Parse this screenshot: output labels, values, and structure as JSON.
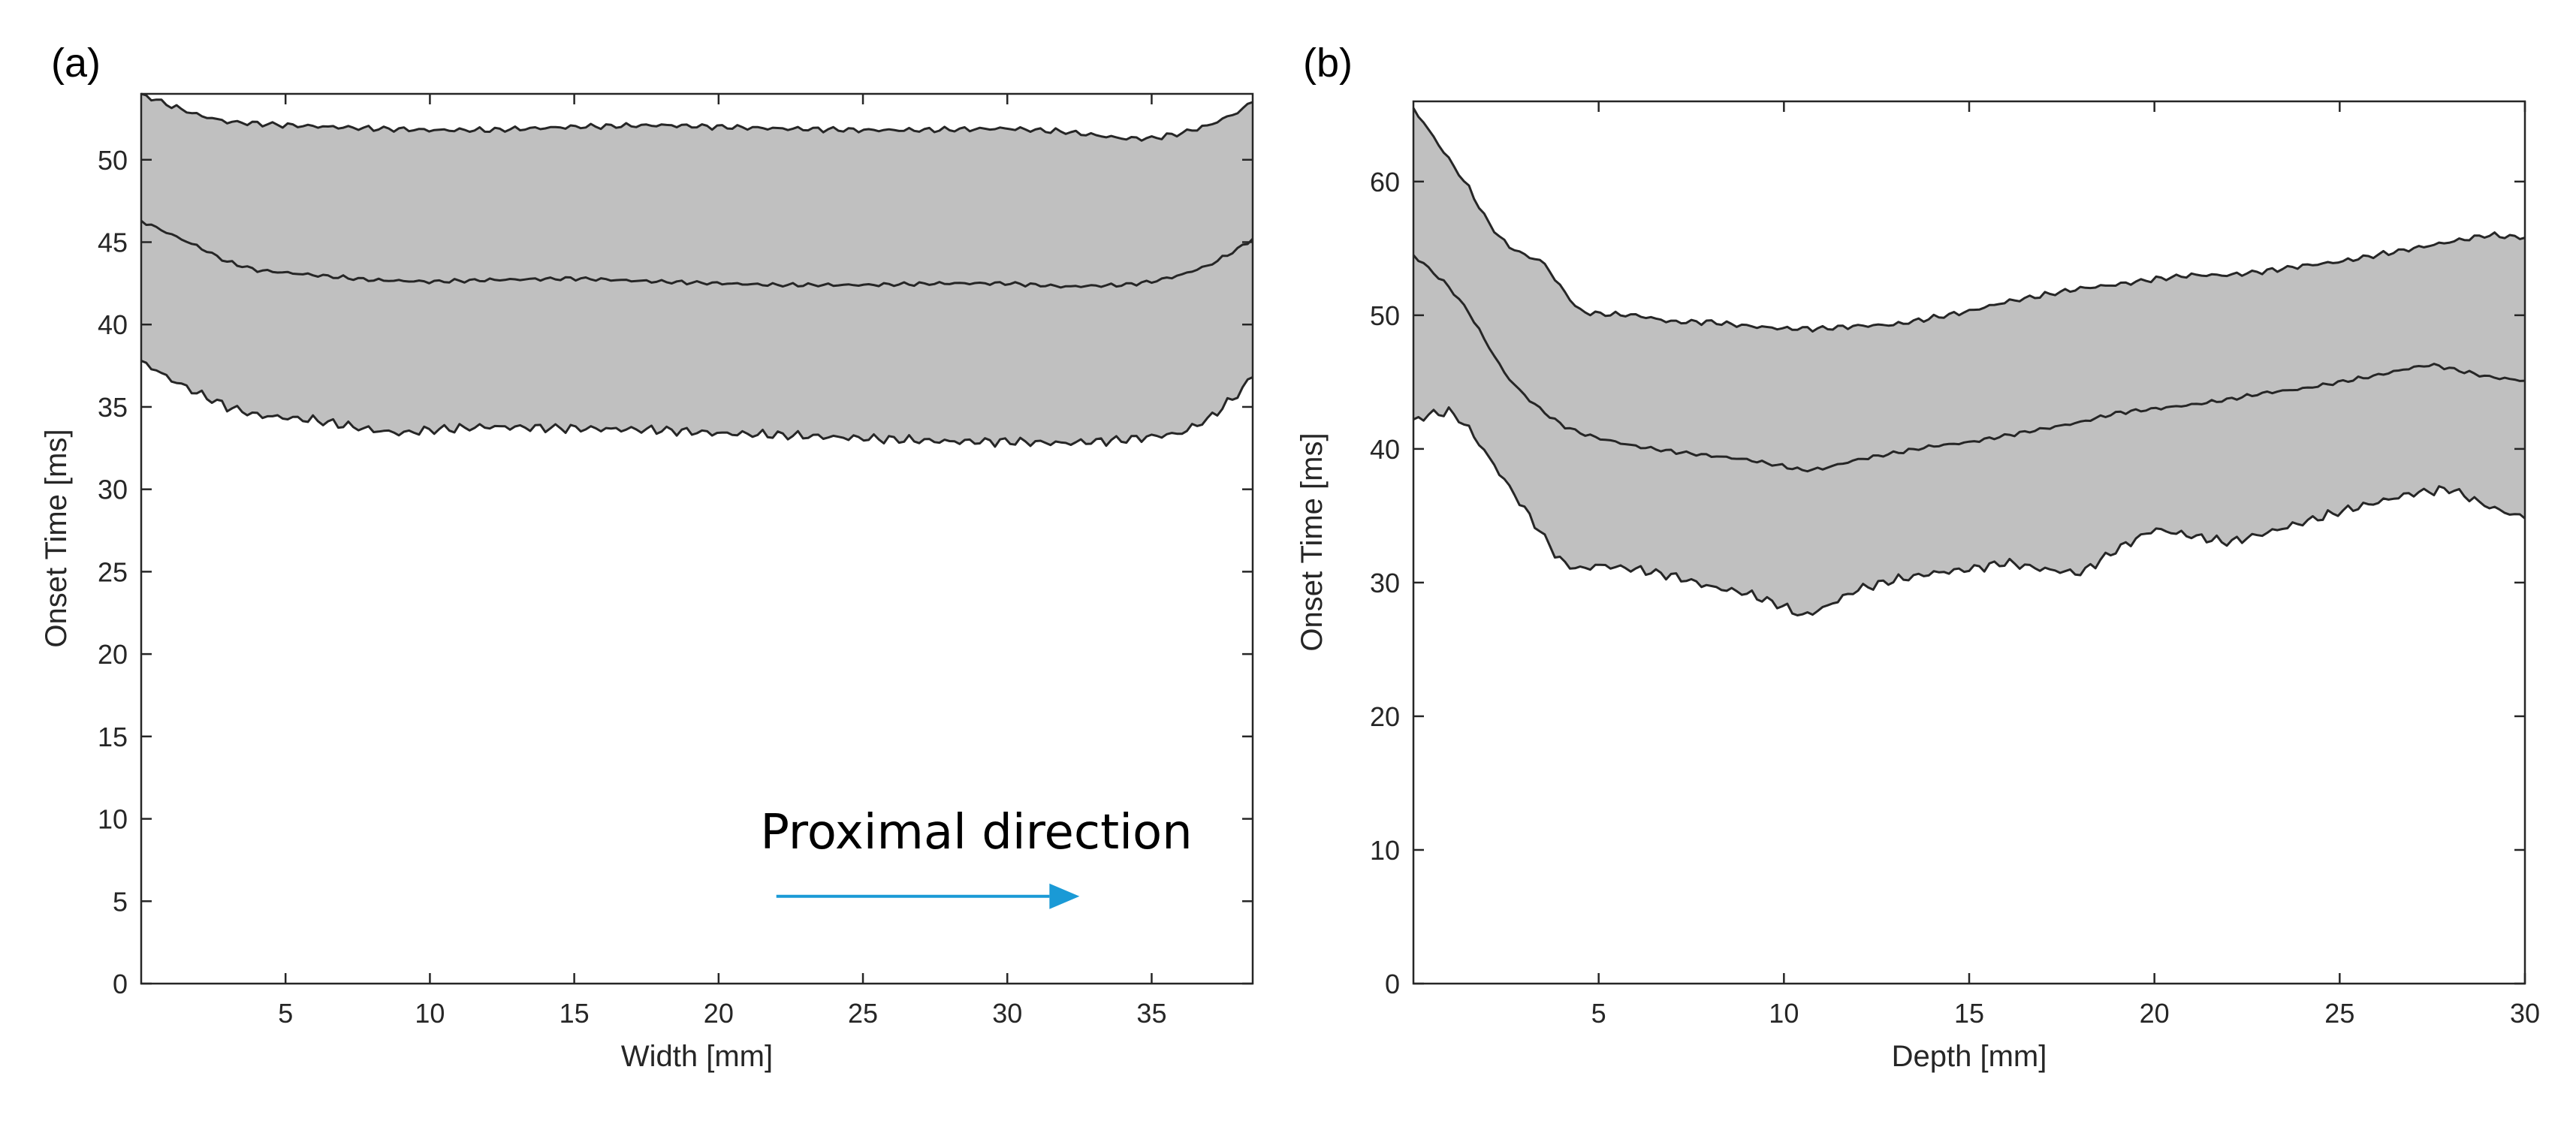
{
  "colors": {
    "band_fill": "#c0c0c0",
    "line": "#262626",
    "axis": "#262626",
    "arrow": "#1a9ad6"
  },
  "chart_data": [
    {
      "type": "area",
      "panel_label": "(a)",
      "title": "",
      "xlabel": "Width [mm]",
      "ylabel": "Onset Time [ms]",
      "xlim": [
        0,
        38.5
      ],
      "ylim": [
        0,
        54
      ],
      "xticks": [
        5,
        10,
        15,
        20,
        25,
        30,
        35
      ],
      "yticks": [
        0,
        5,
        10,
        15,
        20,
        25,
        30,
        35,
        40,
        45,
        50
      ],
      "grid": false,
      "annotation": {
        "text": "Proximal direction",
        "arrow_from_x": 22,
        "arrow_to_x": 32.5,
        "arrow_y": 5.3
      },
      "series": [
        {
          "name": "upper",
          "x": [
            0,
            1,
            2,
            3,
            5,
            8,
            10,
            12,
            15,
            18,
            20,
            22,
            25,
            27,
            30,
            32,
            34,
            35,
            36,
            37,
            38,
            38.5
          ],
          "values": [
            54,
            53.3,
            52.7,
            52.3,
            52.1,
            51.9,
            51.8,
            51.8,
            52,
            52.1,
            52,
            51.9,
            51.8,
            51.8,
            51.9,
            51.7,
            51.3,
            51.3,
            51.6,
            52.1,
            52.9,
            53.5
          ]
        },
        {
          "name": "median",
          "x": [
            0,
            1,
            2,
            3,
            4,
            6,
            8,
            10,
            12,
            15,
            18,
            20,
            22,
            25,
            28,
            30,
            32,
            34,
            35,
            36,
            37,
            38,
            38.5
          ],
          "values": [
            46.3,
            45.5,
            44.7,
            43.8,
            43.3,
            43,
            42.7,
            42.6,
            42.7,
            42.8,
            42.6,
            42.5,
            42.4,
            42.4,
            42.5,
            42.5,
            42.3,
            42.4,
            42.6,
            43,
            43.6,
            44.6,
            45.2
          ]
        },
        {
          "name": "lower",
          "x": [
            0,
            1,
            2,
            3,
            4,
            6,
            8,
            9,
            10,
            12,
            15,
            18,
            20,
            22,
            25,
            28,
            30,
            32,
            34,
            35,
            36,
            37,
            38,
            38.5
          ],
          "values": [
            37.8,
            36.7,
            35.8,
            35,
            34.5,
            34.2,
            33.6,
            33.4,
            33.6,
            33.8,
            33.7,
            33.6,
            33.4,
            33.3,
            33.1,
            32.9,
            32.9,
            32.8,
            33,
            33.2,
            33.4,
            34.3,
            35.8,
            36.8
          ]
        }
      ]
    },
    {
      "type": "area",
      "panel_label": "(b)",
      "title": "",
      "xlabel": "Depth [mm]",
      "ylabel": "Onset Time [ms]",
      "xlim": [
        0,
        30
      ],
      "ylim": [
        0,
        66
      ],
      "xticks": [
        5,
        10,
        15,
        20,
        25,
        30
      ],
      "yticks": [
        0,
        10,
        20,
        30,
        40,
        50,
        60
      ],
      "grid": false,
      "series": [
        {
          "name": "upper",
          "x": [
            0,
            0.5,
            1,
            1.5,
            2,
            2.5,
            3,
            3.5,
            4,
            4.5,
            5,
            6,
            7,
            8,
            9,
            10,
            11,
            12,
            13,
            14,
            15,
            16,
            17,
            18,
            19,
            20,
            21,
            22,
            23,
            24,
            25,
            26,
            27,
            28,
            29,
            30
          ],
          "values": [
            65.5,
            63.5,
            61.5,
            59.5,
            57,
            55.3,
            54.5,
            54,
            52,
            50.3,
            50.1,
            50,
            49.5,
            49.5,
            49.2,
            49,
            49,
            49.2,
            49.3,
            49.8,
            50.3,
            51,
            51.5,
            52,
            52.3,
            52.7,
            53,
            53,
            53.3,
            53.7,
            54,
            54.5,
            55,
            55.5,
            56,
            55.8
          ]
        },
        {
          "name": "median",
          "x": [
            0,
            0.5,
            1,
            1.5,
            2,
            2.5,
            3,
            3.5,
            4,
            4.5,
            5,
            6,
            7,
            8,
            9,
            10,
            10.5,
            11,
            12,
            13,
            14,
            15,
            16,
            17,
            18,
            19,
            20,
            21,
            22,
            23,
            24,
            25,
            26,
            27,
            27.5,
            28,
            29,
            30
          ],
          "values": [
            54.5,
            53.3,
            52,
            50.2,
            47.8,
            45.5,
            44,
            42.8,
            41.8,
            41.2,
            40.8,
            40.2,
            39.8,
            39.5,
            39.2,
            38.7,
            38.4,
            38.5,
            39.2,
            39.7,
            40.2,
            40.5,
            41,
            41.5,
            42,
            42.7,
            43,
            43.3,
            43.7,
            44.2,
            44.5,
            45,
            45.5,
            46.1,
            46.3,
            46,
            45.4,
            45.1
          ]
        },
        {
          "name": "lower",
          "x": [
            0,
            0.5,
            1,
            1.5,
            2,
            2.5,
            3,
            3.5,
            4,
            4.5,
            5,
            6,
            7,
            8,
            9,
            10,
            10.5,
            11,
            12,
            13,
            14,
            15,
            16,
            17,
            18,
            19,
            20,
            21,
            22,
            23,
            24,
            25,
            26,
            27,
            28,
            29,
            30
          ],
          "values": [
            42.2,
            42.6,
            42.8,
            41.5,
            39.5,
            37.5,
            35.5,
            33.5,
            31.5,
            31,
            31.3,
            31,
            30.5,
            29.7,
            29.2,
            28.2,
            27.5,
            28,
            29.5,
            30.2,
            30.7,
            31,
            31.5,
            31,
            30.7,
            32.5,
            34,
            33.5,
            33,
            33.7,
            34.5,
            35.3,
            36,
            36.7,
            37,
            35.7,
            34.8
          ]
        }
      ]
    }
  ]
}
